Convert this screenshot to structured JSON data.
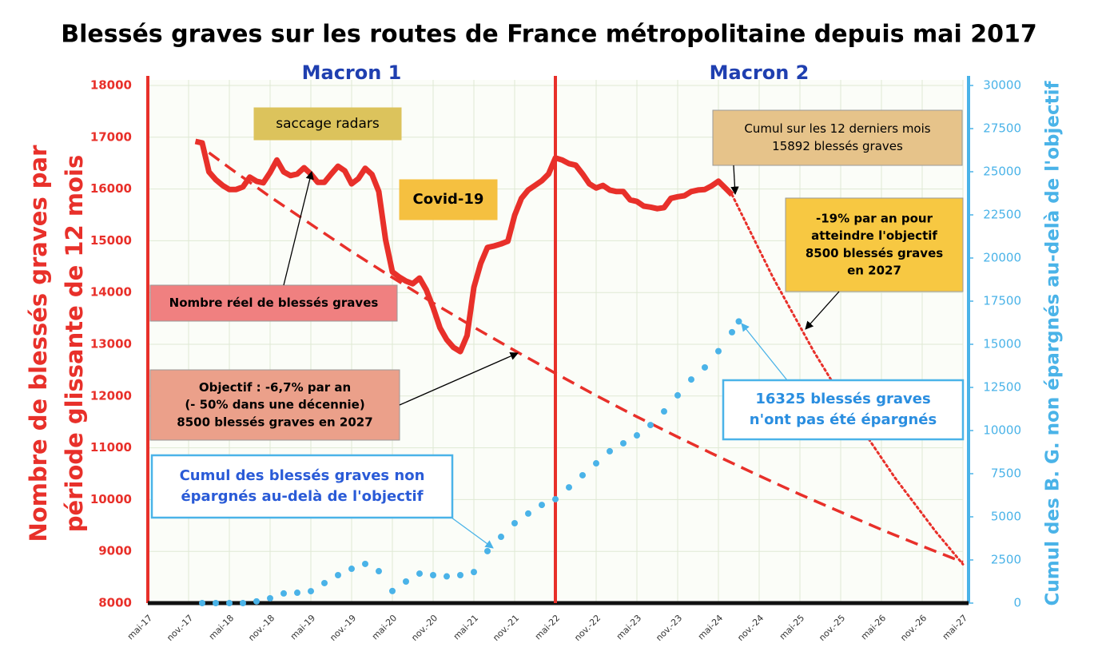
{
  "chart_data": {
    "type": "line",
    "title": "Blessés graves sur les routes de France métropolitaine depuis mai 2017",
    "y_label": [
      "Nombre de blessés graves par",
      "période glissante de 12 mois"
    ],
    "y2_label": "Cumul des B. G. non épargnés au-delà de l'objectif",
    "y_color": "#e8302a",
    "y2_color": "#4ab3e8",
    "periods": [
      {
        "x": 0,
        "label": "Macron 1"
      },
      {
        "x": 60,
        "label": "Macron 2"
      }
    ],
    "xlim": [
      0,
      120
    ],
    "xticks": [
      {
        "value": 0,
        "label": "mai-17"
      },
      {
        "value": 6,
        "label": "nov.-17"
      },
      {
        "value": 12,
        "label": "mai-18"
      },
      {
        "value": 18,
        "label": "nov.-18"
      },
      {
        "value": 24,
        "label": "mai-19"
      },
      {
        "value": 30,
        "label": "nov.-19"
      },
      {
        "value": 36,
        "label": "mai-20"
      },
      {
        "value": 42,
        "label": "nov.-20"
      },
      {
        "value": 48,
        "label": "mai-21"
      },
      {
        "value": 54,
        "label": "nov.-21"
      },
      {
        "value": 60,
        "label": "mai-22"
      },
      {
        "value": 66,
        "label": "nov.-22"
      },
      {
        "value": 72,
        "label": "mai-23"
      },
      {
        "value": 78,
        "label": "nov.-23"
      },
      {
        "value": 84,
        "label": "mai-24"
      },
      {
        "value": 90,
        "label": "nov.-24"
      },
      {
        "value": 96,
        "label": "mai-25"
      },
      {
        "value": 102,
        "label": "nov.-25"
      },
      {
        "value": 108,
        "label": "mai-26"
      },
      {
        "value": 114,
        "label": "nov.-26"
      },
      {
        "value": 120,
        "label": "mai-27"
      }
    ],
    "ylim": [
      8000,
      18000
    ],
    "yticks": [
      8000,
      9000,
      10000,
      11000,
      12000,
      13000,
      14000,
      15000,
      16000,
      17000,
      18000
    ],
    "y2lim": [
      0,
      30000
    ],
    "y2ticks": [
      0,
      2500,
      5000,
      7500,
      10000,
      12500,
      15000,
      17500,
      20000,
      22500,
      25000,
      27500,
      30000
    ],
    "grid": true,
    "series": [
      {
        "style": "solid",
        "color": "#e8302a",
        "x": [
          7,
          8,
          9,
          10,
          11,
          12,
          13,
          14,
          15,
          16,
          17,
          18,
          19,
          20,
          21,
          22,
          23,
          24,
          25,
          26,
          27,
          28,
          29,
          30,
          31,
          32,
          33,
          34,
          35,
          36,
          37,
          38,
          39,
          40,
          41,
          42,
          43,
          44,
          45,
          46,
          47,
          48,
          49,
          50,
          51,
          52,
          53,
          54,
          55,
          56,
          57,
          58,
          59,
          60,
          61,
          62,
          63,
          64,
          65,
          66,
          67,
          68,
          69,
          70,
          71,
          72,
          73,
          74,
          75,
          76,
          77,
          78,
          79,
          80,
          81,
          82,
          83,
          84,
          85,
          86
        ],
        "values": [
          16920,
          16890,
          16330,
          16180,
          16070,
          15990,
          15990,
          16040,
          16230,
          16150,
          16120,
          16320,
          16560,
          16330,
          16260,
          16290,
          16410,
          16290,
          16130,
          16130,
          16290,
          16440,
          16350,
          16100,
          16200,
          16400,
          16280,
          15950,
          15020,
          14400,
          14300,
          14220,
          14170,
          14280,
          14050,
          13710,
          13320,
          13090,
          12940,
          12860,
          13170,
          14100,
          14560,
          14870,
          14900,
          14940,
          14990,
          15490,
          15820,
          15980,
          16070,
          16160,
          16290,
          16600,
          16560,
          16490,
          16460,
          16290,
          16100,
          16020,
          16070,
          15980,
          15950,
          15950,
          15790,
          15760,
          15670,
          15650,
          15620,
          15640,
          15820,
          15850,
          15870,
          15950,
          15980,
          15990,
          16060,
          16150,
          16020,
          15890
        ]
      },
      {
        "style": "dashed",
        "color": "#e8302a",
        "x": [
          9,
          12,
          18,
          24,
          30,
          36,
          42,
          48,
          54,
          60,
          66,
          72,
          78,
          84,
          90,
          96,
          102,
          108,
          114,
          120
        ],
        "values": [
          16700,
          16410,
          15850,
          15320,
          14790,
          14290,
          13800,
          13330,
          12880,
          12440,
          12010,
          11600,
          11210,
          10830,
          10460,
          10100,
          9760,
          9420,
          9100,
          8790
        ]
      },
      {
        "style": "dotted",
        "color": "#e8302a",
        "x": [
          86,
          92,
          98,
          104,
          110,
          116,
          120
        ],
        "values": [
          15890,
          14300,
          12870,
          11580,
          10420,
          9380,
          8750
        ]
      },
      {
        "style": "dots",
        "color": "#4ab3e8",
        "axis": "y2",
        "x": [
          8,
          10,
          12,
          14,
          16,
          18,
          20,
          22,
          24,
          26,
          28,
          30,
          32,
          34,
          36,
          38,
          40,
          42,
          44,
          46,
          48,
          50,
          52,
          54,
          56,
          58,
          60,
          62,
          64,
          66,
          68,
          70,
          72,
          74,
          76,
          78,
          80,
          82,
          84,
          86,
          87
        ],
        "values": [
          0,
          0,
          0,
          0,
          100,
          280,
          560,
          600,
          690,
          1160,
          1620,
          1990,
          2270,
          1850,
          700,
          1250,
          1710,
          1620,
          1550,
          1620,
          1800,
          3010,
          3840,
          4630,
          5190,
          5690,
          6020,
          6710,
          7410,
          8100,
          8800,
          9260,
          9720,
          10320,
          11110,
          12040,
          12960,
          13660,
          14600,
          15700,
          16325
        ]
      }
    ],
    "annotations": [
      {
        "lines": [
          "saccage radars"
        ]
      },
      {
        "lines": [
          "Covid-19"
        ]
      },
      {
        "lines": [
          "Cumul sur les 12 derniers mois",
          "15892 blessés graves"
        ]
      },
      {
        "lines": [
          "-19% par an pour",
          "atteindre l'objectif",
          "8500 blessés graves",
          "en 2027"
        ]
      },
      {
        "lines": [
          "Nombre réel de blessés graves"
        ]
      },
      {
        "lines": [
          "Objectif : -6,7% par an",
          "(- 50% dans une décennie)",
          "8500 blessés graves en 2027"
        ]
      },
      {
        "lines": [
          "Cumul des blessés graves non",
          "épargnés  au-delà de l'objectif"
        ]
      },
      {
        "lines": [
          "16325 blessés  graves",
          "n'ont pas été épargnés"
        ]
      }
    ]
  }
}
